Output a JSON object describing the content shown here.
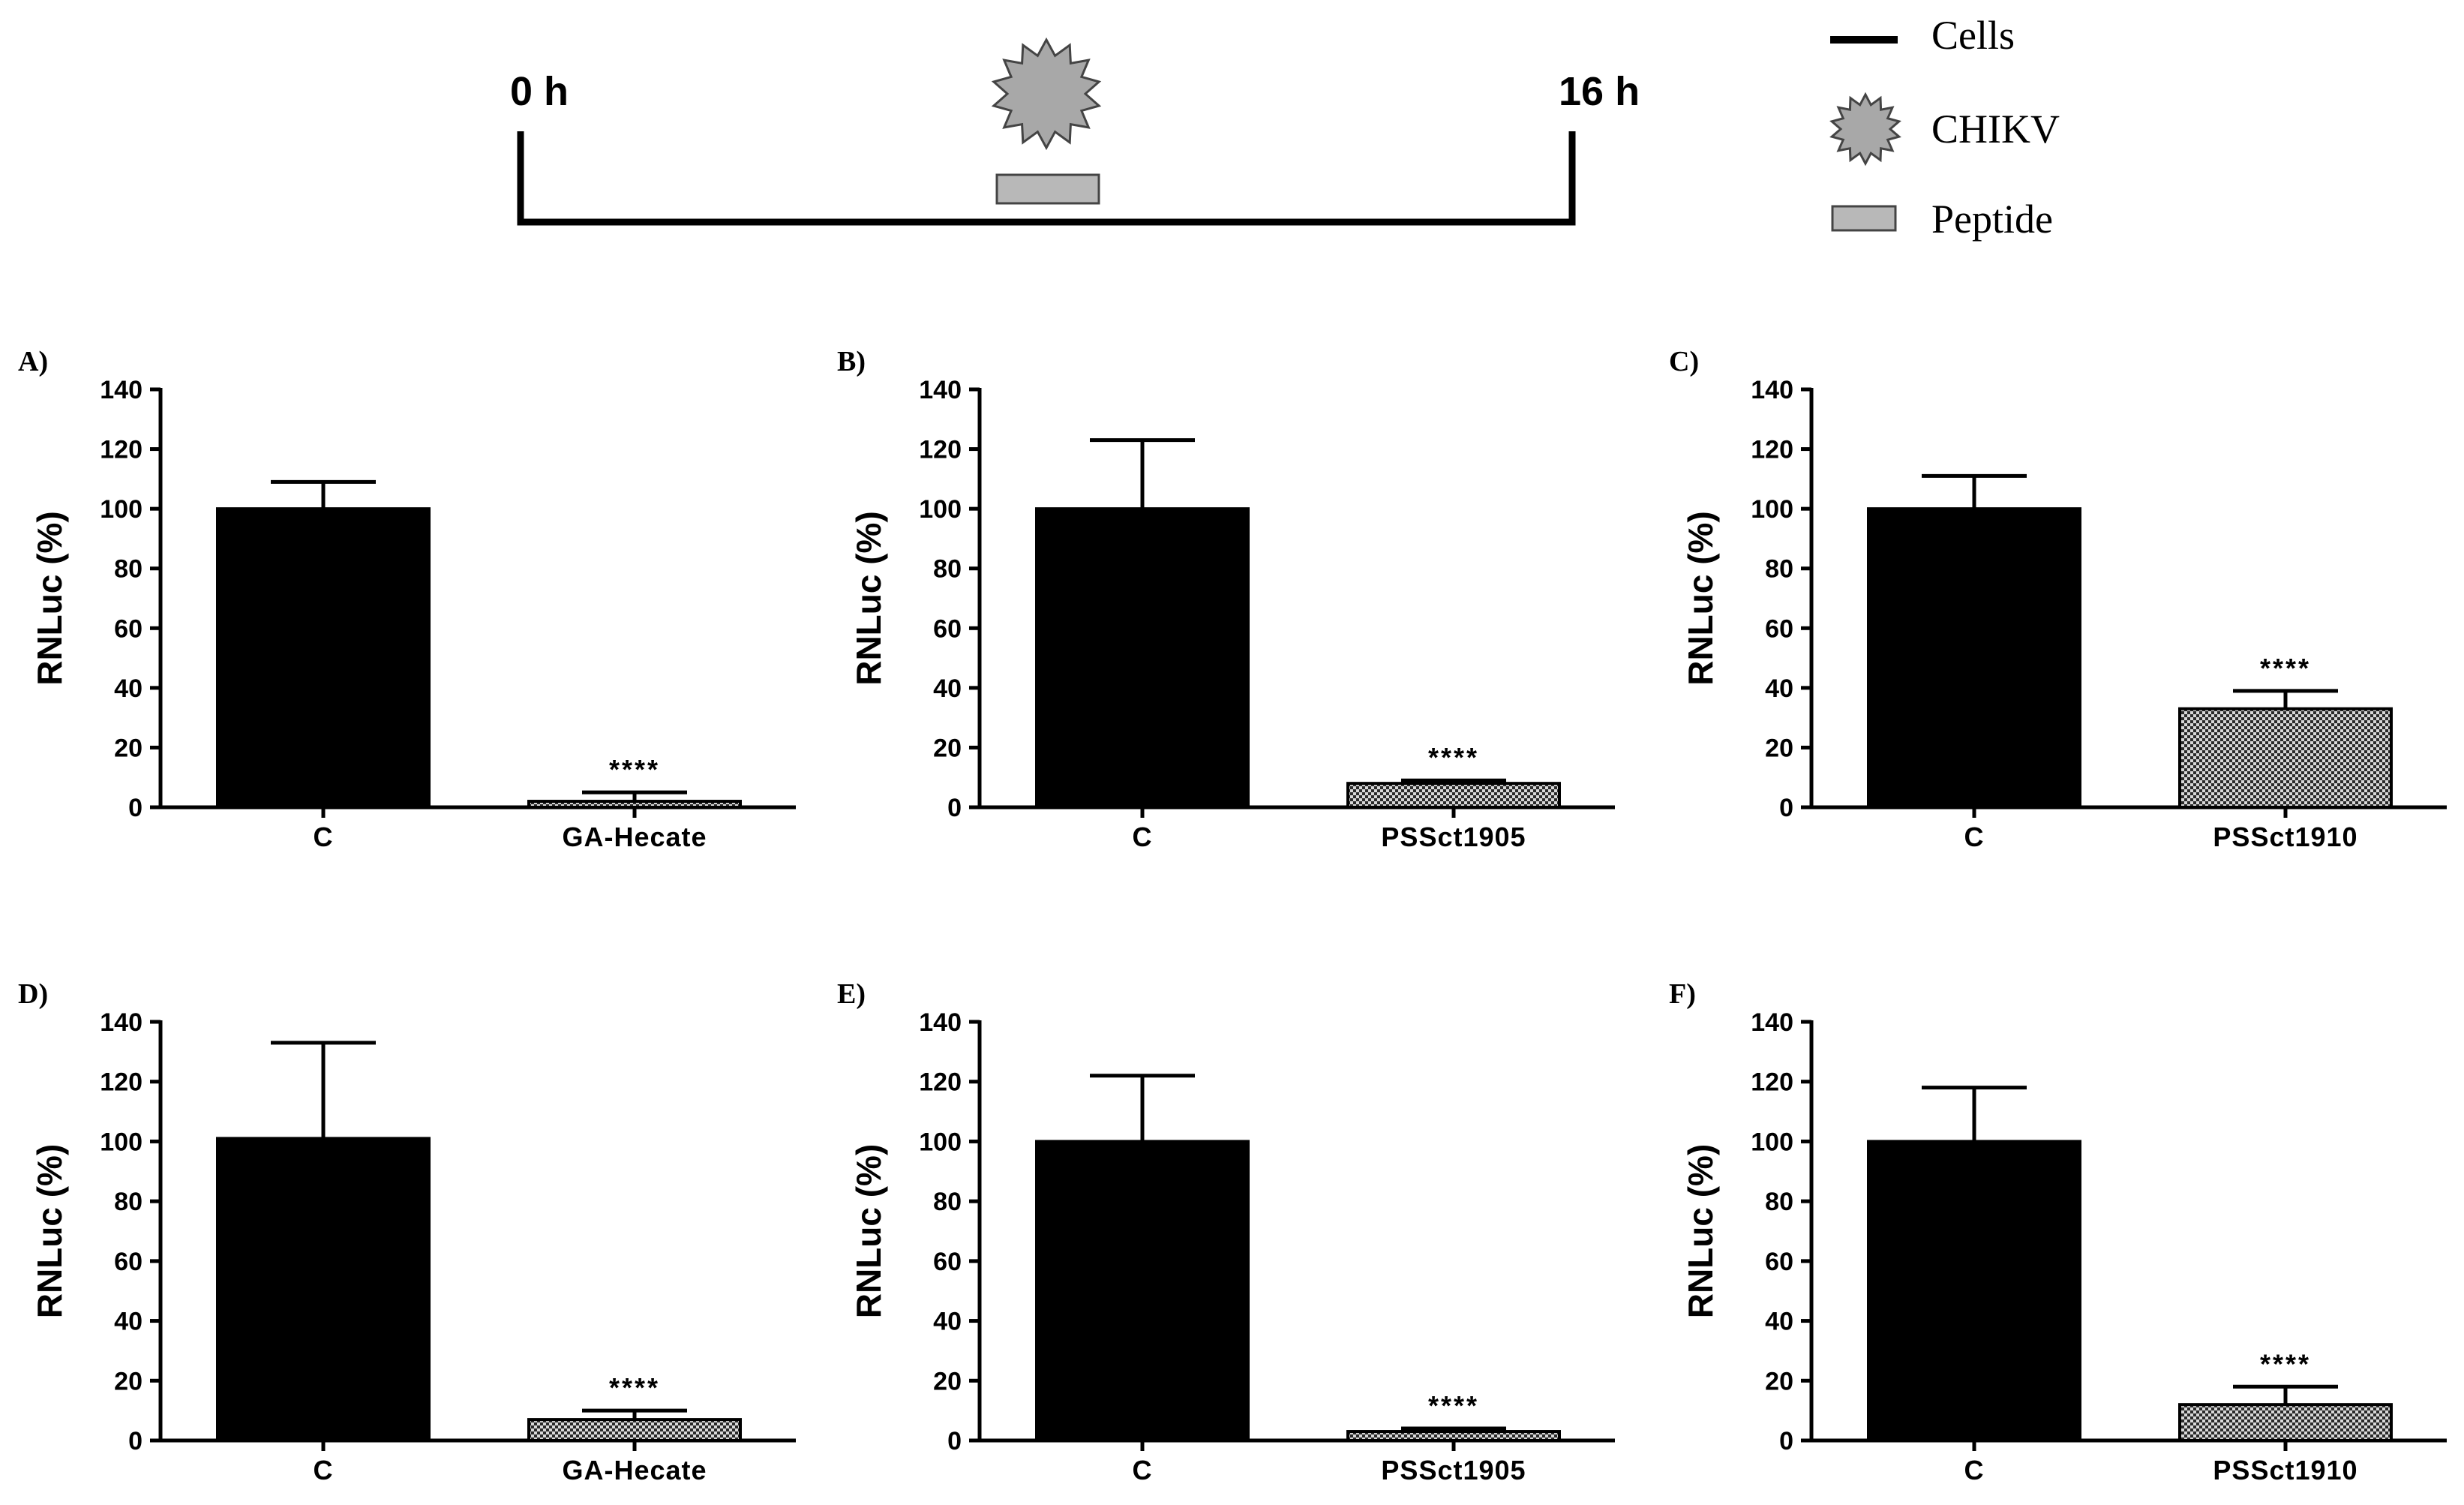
{
  "timeline": {
    "start_label": "0 h",
    "end_label": "16 h"
  },
  "legend": {
    "items": [
      {
        "label": "Cells",
        "icon": "line-icon"
      },
      {
        "label": "CHIKV",
        "icon": "virus-star-icon"
      },
      {
        "label": "Peptide",
        "icon": "peptide-box-icon"
      }
    ]
  },
  "colors": {
    "control_bar": "#000000",
    "peptide_fill": "#b8b8b8",
    "virus_fill": "#a8a8a8",
    "hatch_dark": "#2a2a2a",
    "hatch_light": "#d8d8d8"
  },
  "chart_data": [
    {
      "panel": "A)",
      "type": "bar",
      "ylabel": "RNLuc (%)",
      "ylim": [
        0,
        140
      ],
      "yticks": [
        "0",
        "20",
        "40",
        "60",
        "80",
        "100",
        "120",
        "140"
      ],
      "categories": [
        "C",
        "GA-Hecate"
      ],
      "values": [
        100,
        2
      ],
      "errors": [
        9,
        3
      ],
      "significance": [
        "",
        "****"
      ]
    },
    {
      "panel": "B)",
      "type": "bar",
      "ylabel": "RNLuc (%)",
      "ylim": [
        0,
        140
      ],
      "yticks": [
        "0",
        "20",
        "40",
        "60",
        "80",
        "100",
        "120",
        "140"
      ],
      "categories": [
        "C",
        "PSSct1905"
      ],
      "values": [
        100,
        8
      ],
      "errors": [
        23,
        1
      ],
      "significance": [
        "",
        "****"
      ]
    },
    {
      "panel": "C)",
      "type": "bar",
      "ylabel": "RNLuc (%)",
      "ylim": [
        0,
        140
      ],
      "yticks": [
        "0",
        "20",
        "40",
        "60",
        "80",
        "100",
        "120",
        "140"
      ],
      "categories": [
        "C",
        "PSSct1910"
      ],
      "values": [
        100,
        33
      ],
      "errors": [
        11,
        6
      ],
      "significance": [
        "",
        "****"
      ]
    },
    {
      "panel": "D)",
      "type": "bar",
      "ylabel": "RNLuc (%)",
      "ylim": [
        0,
        140
      ],
      "yticks": [
        "0",
        "20",
        "40",
        "60",
        "80",
        "100",
        "120",
        "140"
      ],
      "categories": [
        "C",
        "GA-Hecate"
      ],
      "values": [
        101,
        7
      ],
      "errors": [
        32,
        3
      ],
      "significance": [
        "",
        "****"
      ]
    },
    {
      "panel": "E)",
      "type": "bar",
      "ylabel": "RNLuc (%)",
      "ylim": [
        0,
        140
      ],
      "yticks": [
        "0",
        "20",
        "40",
        "60",
        "80",
        "100",
        "120",
        "140"
      ],
      "categories": [
        "C",
        "PSSct1905"
      ],
      "values": [
        100,
        3
      ],
      "errors": [
        22,
        1
      ],
      "significance": [
        "",
        "****"
      ]
    },
    {
      "panel": "F)",
      "type": "bar",
      "ylabel": "RNLuc (%)",
      "ylim": [
        0,
        140
      ],
      "yticks": [
        "0",
        "20",
        "40",
        "60",
        "80",
        "100",
        "120",
        "140"
      ],
      "categories": [
        "C",
        "PSSct1910"
      ],
      "values": [
        100,
        12
      ],
      "errors": [
        18,
        6
      ],
      "significance": [
        "",
        "****"
      ]
    }
  ]
}
